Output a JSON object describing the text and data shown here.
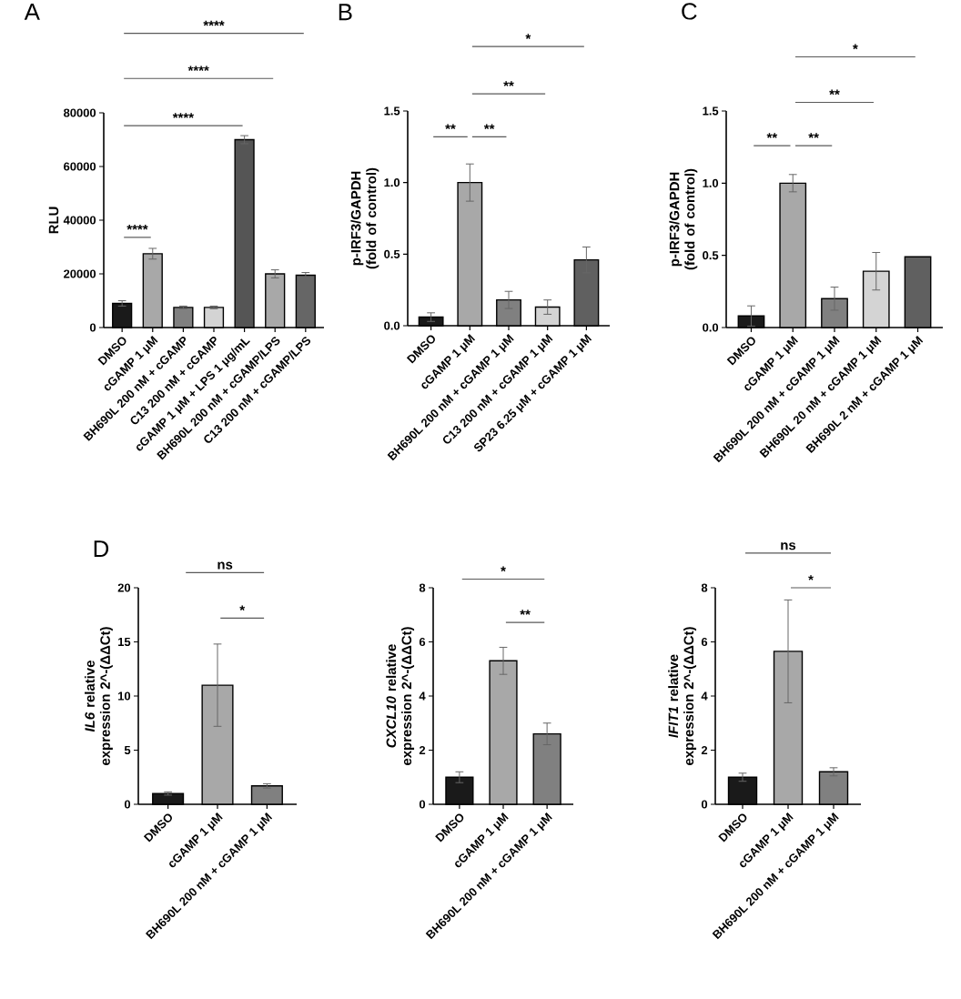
{
  "chart_data": [
    {
      "type": "bar",
      "title": "A",
      "ylabel": "RLU",
      "categories": [
        "DMSO",
        "cGAMP 1 μM",
        "BH690L 200 nM + cGAMP",
        "C13 200 nM + cGAMP",
        "cGAMP 1 μM + LPS 1 μg/mL",
        "BH690L 200 nM + cGAMP/LPS",
        "C13 200 nM + cGAMP/LPS"
      ],
      "values": [
        9000,
        27500,
        7500,
        7500,
        70000,
        20000,
        19500
      ],
      "errors": [
        1000,
        2000,
        500,
        500,
        1500,
        1500,
        1000
      ],
      "colors": [
        "#1a1a1a",
        "#a8a8a8",
        "#808080",
        "#d4d4d4",
        "#555555",
        "#a8a8a8",
        "#666666"
      ],
      "ylim": [
        0,
        80000
      ],
      "yticks": [
        0,
        20000,
        40000,
        60000,
        80000
      ],
      "annotations": [
        "****",
        "****",
        "****",
        "****"
      ]
    },
    {
      "type": "bar",
      "title": "B",
      "ylabel": "p-IRF3/GAPDH (fold of control)",
      "categories": [
        "DMSO",
        "cGAMP 1 μM",
        "BH690L 200 nM + cGAMP 1 μM",
        "C13 200 nM + cGAMP 1 μM",
        "SP23 6.25 μM + cGAMP 1 μM"
      ],
      "values": [
        0.06,
        1.0,
        0.18,
        0.13,
        0.46
      ],
      "errors": [
        0.03,
        0.13,
        0.06,
        0.05,
        0.09
      ],
      "colors": [
        "#1a1a1a",
        "#a8a8a8",
        "#808080",
        "#d4d4d4",
        "#606060"
      ],
      "ylim": [
        0,
        1.5
      ],
      "yticks": [
        {
          "value": 0,
          "label": "0.0"
        },
        {
          "value": 0.5,
          "label": "0.5"
        },
        {
          "value": 1,
          "label": "1.0"
        },
        {
          "value": 1.5,
          "label": "1.5"
        }
      ],
      "annotations": [
        "**",
        "**",
        "**",
        "*"
      ]
    },
    {
      "type": "bar",
      "title": "C",
      "ylabel": "p-IRF3/GAPDH (fold of control)",
      "categories": [
        "DMSO",
        "cGAMP 1 μM",
        "BH690L 200 nM + cGAMP 1 μM",
        "BH690L 20 nM + cGAMP 1 μM",
        "BH690L 2 nM + cGAMP 1 μM"
      ],
      "values": [
        0.08,
        1.0,
        0.2,
        0.39,
        0.49
      ],
      "errors": [
        0.07,
        0.06,
        0.08,
        0.13,
        null
      ],
      "colors": [
        "#1a1a1a",
        "#a8a8a8",
        "#808080",
        "#d4d4d4",
        "#606060"
      ],
      "ylim": [
        0,
        1.5
      ],
      "yticks": [
        {
          "value": 0,
          "label": "0.0"
        },
        {
          "value": 0.5,
          "label": "0.5"
        },
        {
          "value": 1,
          "label": "1.0"
        },
        {
          "value": 1.5,
          "label": "1.5"
        }
      ],
      "annotations": [
        "**",
        "**",
        "**",
        "*"
      ]
    },
    {
      "type": "bar",
      "title": "D",
      "ylabel": "*IL6* relative expression 2^-(ΔΔCt)",
      "categories": [
        "DMSO",
        "cGAMP 1 μM",
        "BH690L 200 nM + cGAMP 1 μM"
      ],
      "values": [
        1.0,
        11.0,
        1.7
      ],
      "errors": [
        0.15,
        3.8,
        0.2
      ],
      "colors": [
        "#1a1a1a",
        "#a8a8a8",
        "#808080"
      ],
      "ylim": [
        0,
        20
      ],
      "yticks": [
        0,
        5,
        10,
        15,
        20
      ],
      "annotations": [
        "ns",
        "*"
      ]
    },
    {
      "type": "bar",
      "ylabel": "*CXCL10* relative expression 2^-(ΔΔCt)",
      "categories": [
        "DMSO",
        "cGAMP 1 μM",
        "BH690L 200 nM + cGAMP 1 μM"
      ],
      "values": [
        1.0,
        5.3,
        2.6
      ],
      "errors": [
        0.2,
        0.5,
        0.4
      ],
      "colors": [
        "#1a1a1a",
        "#a8a8a8",
        "#808080"
      ],
      "ylim": [
        0,
        8
      ],
      "yticks": [
        0,
        2,
        4,
        6,
        8
      ],
      "annotations": [
        "*",
        "**"
      ]
    },
    {
      "type": "bar",
      "ylabel": "*IFIT1* relative expression 2^-(ΔΔCt)",
      "categories": [
        "DMSO",
        "cGAMP 1 μM",
        "BH690L 200 nM + cGAMP 1 μM"
      ],
      "values": [
        1.0,
        5.65,
        1.2
      ],
      "errors": [
        0.15,
        1.9,
        0.15
      ],
      "colors": [
        "#1a1a1a",
        "#a8a8a8",
        "#808080"
      ],
      "ylim": [
        0,
        8
      ],
      "yticks": [
        0,
        2,
        4,
        6,
        8
      ],
      "annotations": [
        "ns",
        "*"
      ]
    }
  ]
}
